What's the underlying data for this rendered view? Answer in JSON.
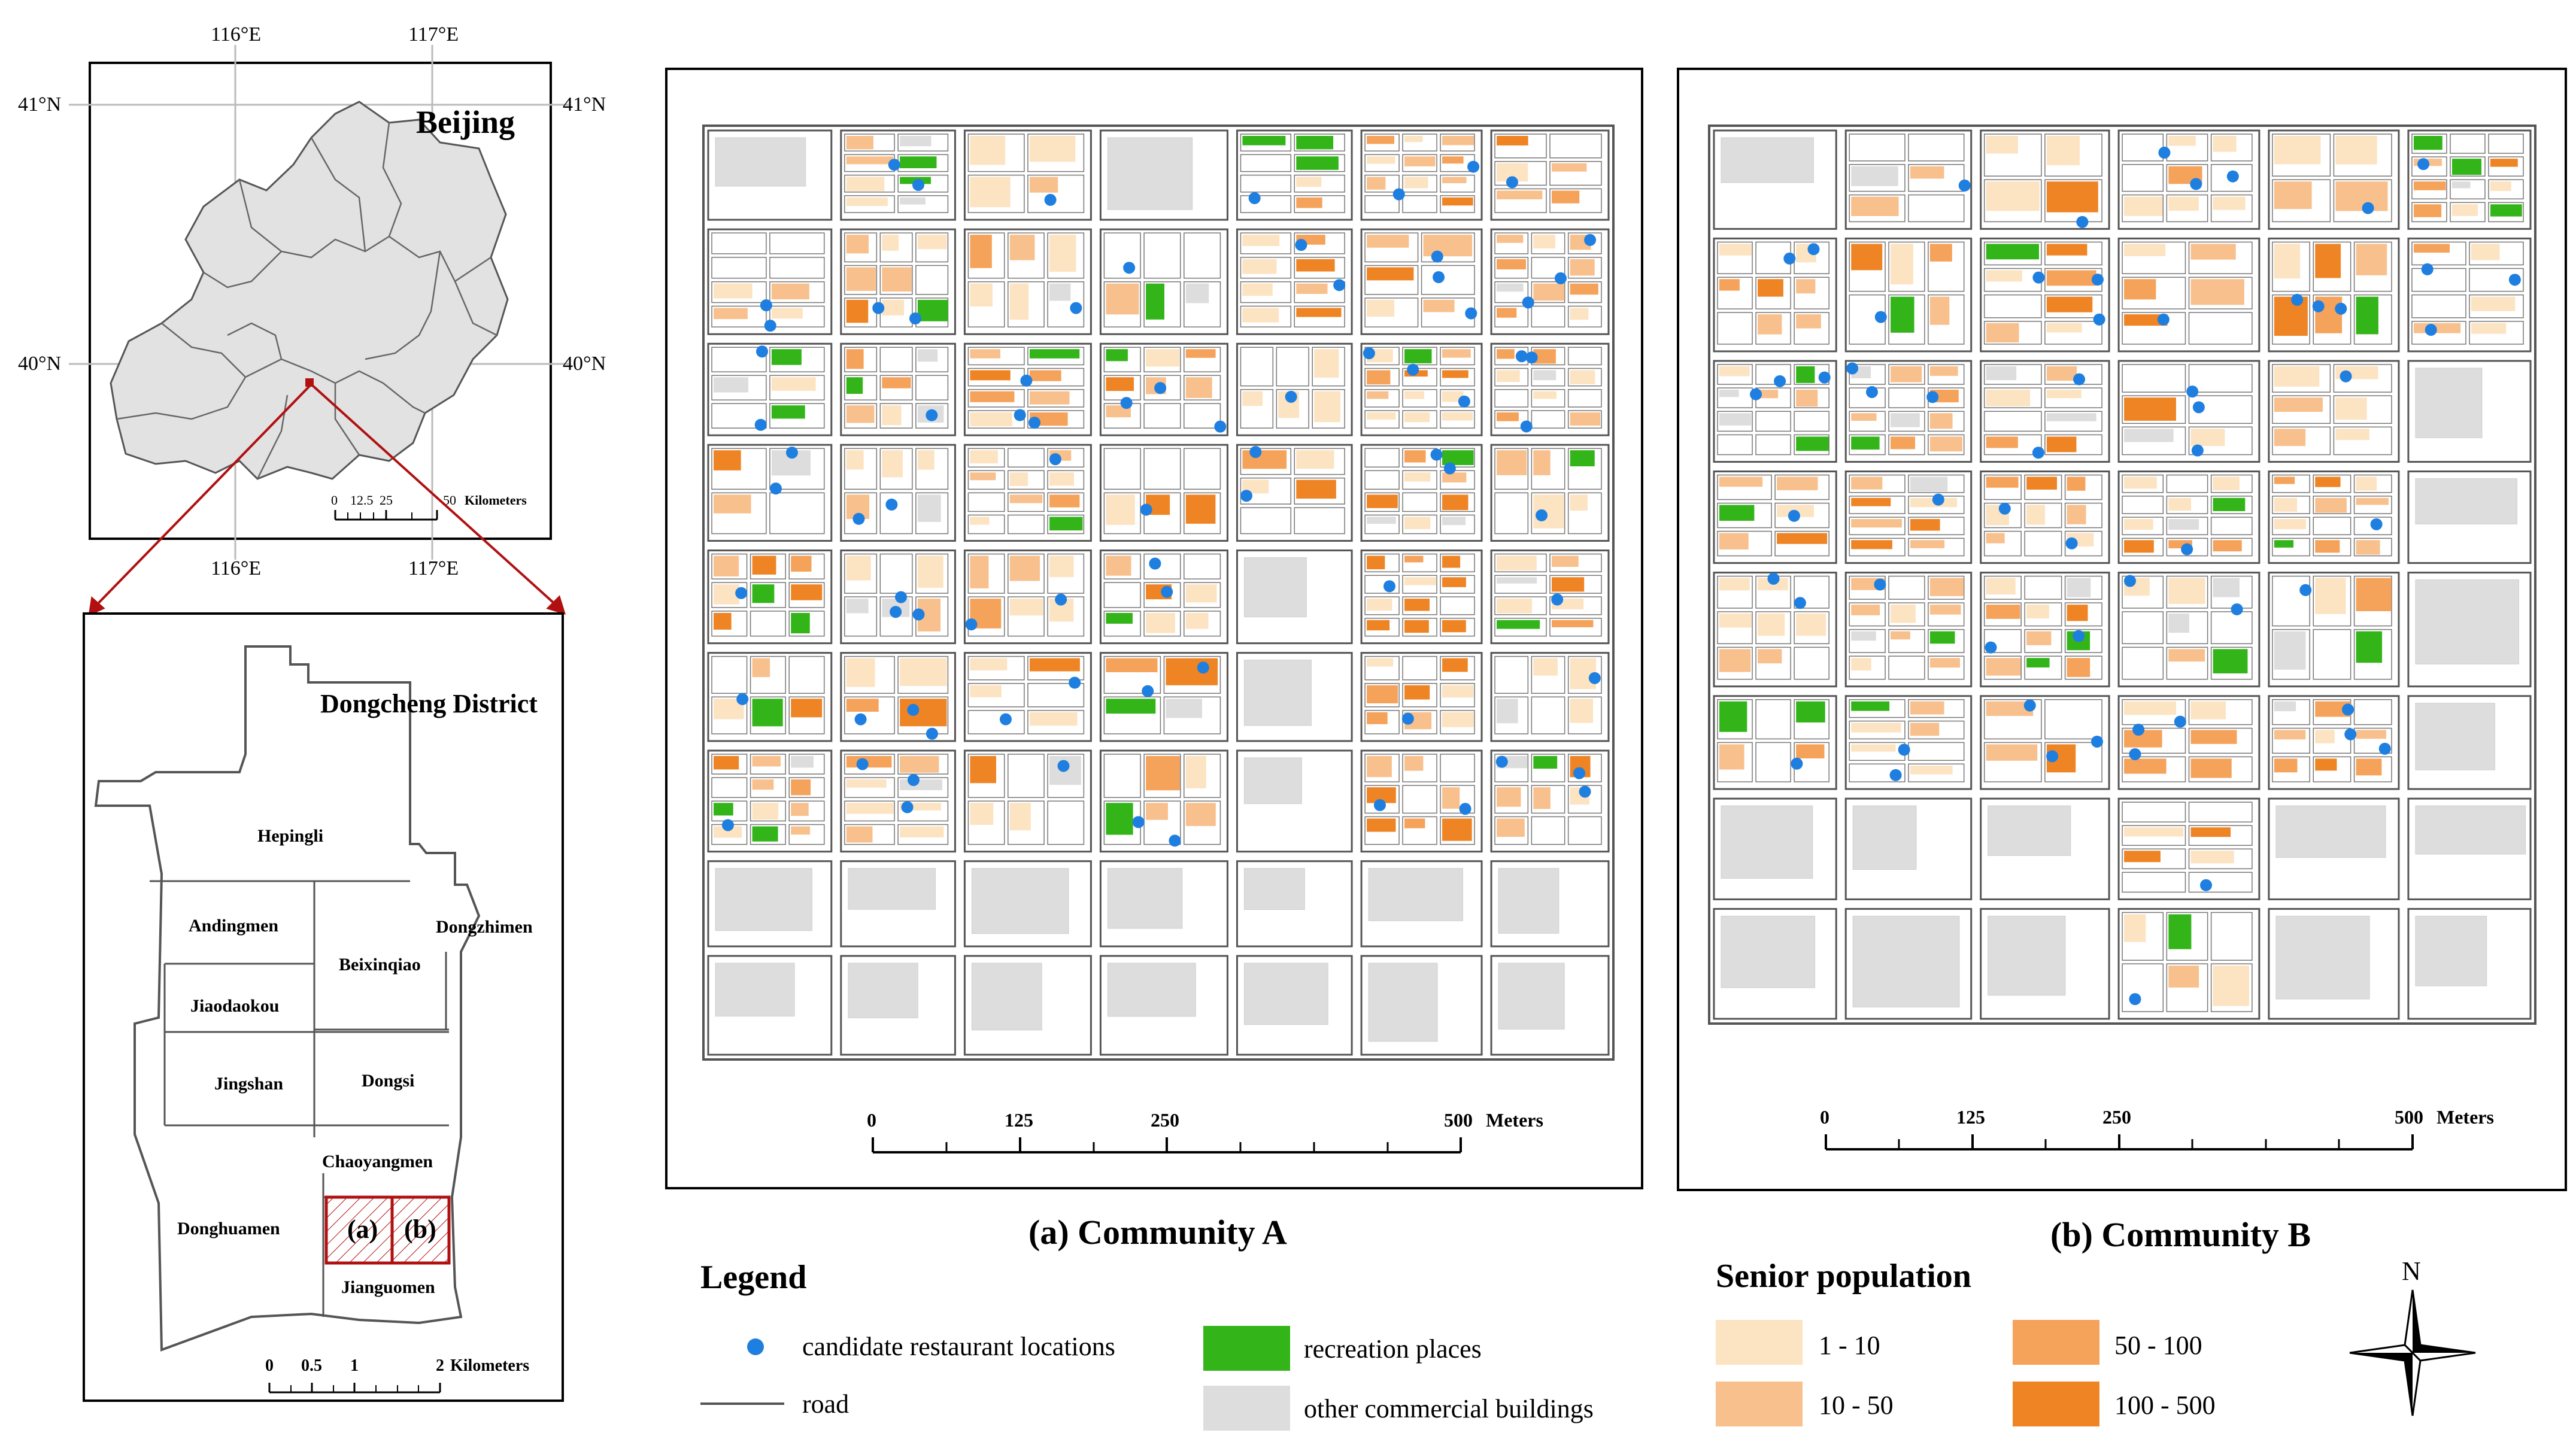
{
  "beijing_panel": {
    "title": "Beijing",
    "lon_labels": [
      "116°E",
      "117°E"
    ],
    "lat_labels": [
      "41°N",
      "40°N"
    ],
    "scale": {
      "ticks": [
        "0",
        "12.5",
        "25",
        "50"
      ],
      "unit": "Kilometers"
    }
  },
  "district_panel": {
    "title": "Dongcheng District",
    "subdistricts": [
      "Hepingli",
      "Andingmen",
      "Dongzhimen",
      "Beixinqiao",
      "Jiaodaokou",
      "Jingshan",
      "Dongsi",
      "Chaoyangmen",
      "Donghuamen",
      "Jianguomen"
    ],
    "study_areas": [
      "(a)",
      "(b)"
    ],
    "scale": {
      "ticks": [
        "0",
        "0.5",
        "1",
        "2"
      ],
      "unit": "Kilometers"
    }
  },
  "maps": [
    {
      "caption": "(a) Community A",
      "scale": {
        "ticks": [
          "0",
          "125",
          "250",
          "500"
        ],
        "unit": "Meters"
      }
    },
    {
      "caption": "(b) Community B",
      "scale": {
        "ticks": [
          "0",
          "125",
          "250",
          "500"
        ],
        "unit": "Meters"
      }
    }
  ],
  "legend": {
    "title": "Legend",
    "items": [
      {
        "label": "candidate restaurant locations",
        "symbol": "point",
        "color": "#1f7fe0"
      },
      {
        "label": "road",
        "symbol": "line",
        "color": "#555555"
      },
      {
        "label": "recreation places",
        "symbol": "fill",
        "color": "#33b51a"
      },
      {
        "label": "other commercial buildings",
        "symbol": "fill",
        "color": "#dddddd"
      }
    ]
  },
  "senior_population": {
    "title": "Senior population",
    "classes": [
      {
        "label": "1 - 10",
        "color": "#fce3c2"
      },
      {
        "label": "10 - 50",
        "color": "#f8c08c"
      },
      {
        "label": "50 - 100",
        "color": "#f5a25a"
      },
      {
        "label": "100 - 500",
        "color": "#ee8424"
      }
    ]
  },
  "north_arrow": {
    "label": "N"
  },
  "colors": {
    "restaurant": "#1f7fe0",
    "recreation": "#33b51a",
    "commercial": "#dddddd",
    "road": "#555555",
    "beijing_fill": "#e2e2e2",
    "highlight": "#b01010"
  }
}
